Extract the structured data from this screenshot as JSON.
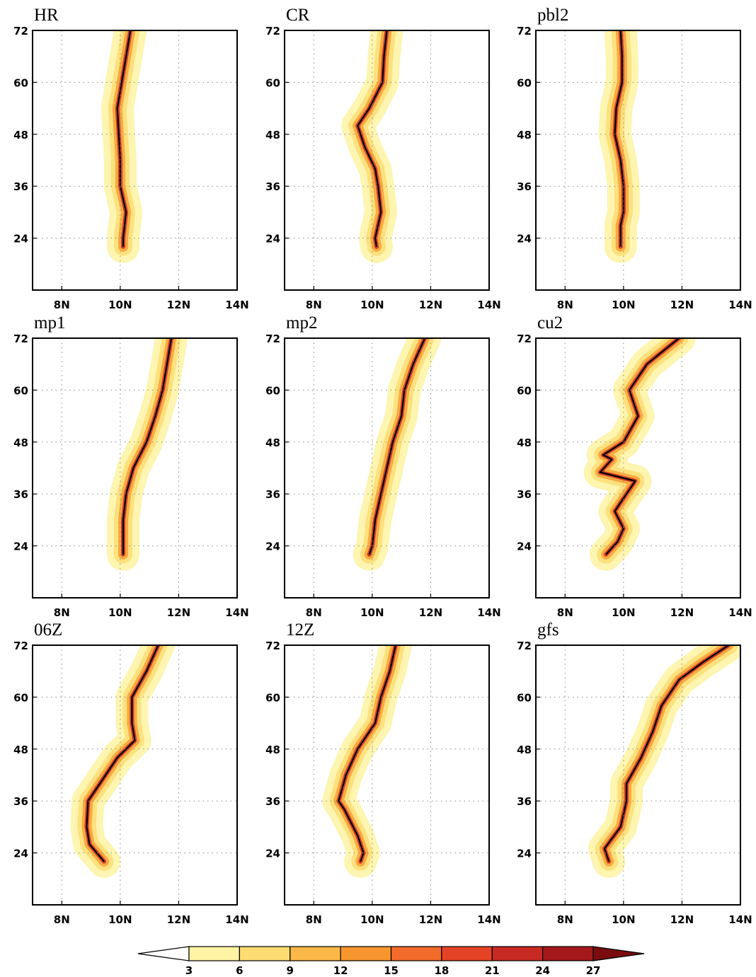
{
  "chart_data": [
    {
      "type": "line",
      "title": "HR",
      "x": [
        10.35,
        10.2,
        10.05,
        9.9,
        9.95,
        10.0,
        10.0,
        10.2,
        10.1,
        10.1
      ],
      "values": [
        72,
        66,
        60,
        54,
        48,
        42,
        36,
        30,
        24,
        22
      ],
      "color": "#000000",
      "xlim": [
        7,
        14
      ],
      "ylim": [
        12,
        72
      ],
      "xticks": [
        {
          "value": 8,
          "label": "8N"
        },
        {
          "value": 10,
          "label": "10N"
        },
        {
          "value": 12,
          "label": "12N"
        },
        {
          "value": 14,
          "label": "14N"
        }
      ],
      "yticks": [
        24,
        36,
        48,
        60,
        72
      ],
      "grid": true
    },
    {
      "type": "line",
      "title": "CR",
      "x": [
        10.5,
        10.4,
        10.35,
        9.9,
        9.5,
        9.75,
        10.1,
        10.2,
        10.3,
        10.1,
        10.15
      ],
      "values": [
        72,
        66,
        60,
        54,
        50,
        45,
        40,
        36,
        30,
        24,
        22
      ],
      "color": "#000000",
      "xlim": [
        7,
        14
      ],
      "ylim": [
        12,
        72
      ],
      "xticks": [
        {
          "value": 8,
          "label": "8N"
        },
        {
          "value": 10,
          "label": "10N"
        },
        {
          "value": 12,
          "label": "12N"
        },
        {
          "value": 14,
          "label": "14N"
        }
      ],
      "yticks": [
        24,
        36,
        48,
        60,
        72
      ],
      "grid": true
    },
    {
      "type": "line",
      "title": "pbl2",
      "x": [
        9.9,
        9.95,
        9.95,
        9.75,
        9.7,
        9.9,
        10.0,
        10.0,
        9.9,
        9.9
      ],
      "values": [
        72,
        66,
        60,
        54,
        48,
        42,
        36,
        30,
        27,
        22
      ],
      "color": "#000000",
      "xlim": [
        7,
        14
      ],
      "ylim": [
        12,
        72
      ],
      "xticks": [
        {
          "value": 8,
          "label": "8N"
        },
        {
          "value": 10,
          "label": "10N"
        },
        {
          "value": 12,
          "label": "12N"
        },
        {
          "value": 14,
          "label": "14N"
        }
      ],
      "yticks": [
        24,
        36,
        48,
        60,
        72
      ],
      "grid": true
    },
    {
      "type": "line",
      "title": "mp1",
      "x": [
        11.75,
        11.6,
        11.45,
        11.2,
        10.9,
        10.45,
        10.2,
        10.1,
        10.1
      ],
      "values": [
        72,
        66,
        60,
        54,
        48,
        42,
        36,
        30,
        22
      ],
      "color": "#000000",
      "xlim": [
        7,
        14
      ],
      "ylim": [
        12,
        72
      ],
      "xticks": [
        {
          "value": 8,
          "label": "8N"
        },
        {
          "value": 10,
          "label": "10N"
        },
        {
          "value": 12,
          "label": "12N"
        },
        {
          "value": 14,
          "label": "14N"
        }
      ],
      "yticks": [
        24,
        36,
        48,
        60,
        72
      ],
      "grid": true
    },
    {
      "type": "line",
      "title": "mp2",
      "x": [
        11.8,
        11.4,
        11.1,
        11.0,
        10.7,
        10.5,
        10.3,
        10.1,
        10.0,
        9.9
      ],
      "values": [
        72,
        66,
        60,
        54,
        48,
        42,
        36,
        30,
        24,
        22
      ],
      "color": "#000000",
      "xlim": [
        7,
        14
      ],
      "ylim": [
        12,
        72
      ],
      "xticks": [
        {
          "value": 8,
          "label": "8N"
        },
        {
          "value": 10,
          "label": "10N"
        },
        {
          "value": 12,
          "label": "12N"
        },
        {
          "value": 14,
          "label": "14N"
        }
      ],
      "yticks": [
        24,
        36,
        48,
        60,
        72
      ],
      "grid": true
    },
    {
      "type": "line",
      "title": "cu2",
      "x": [
        11.9,
        10.8,
        10.2,
        10.5,
        10.0,
        9.3,
        9.6,
        9.2,
        10.4,
        9.9,
        9.7,
        10.0,
        9.8,
        9.4
      ],
      "values": [
        72,
        66,
        60,
        54,
        48,
        45,
        44,
        41,
        39,
        34,
        32,
        28,
        25,
        22
      ],
      "color": "#000000",
      "xlim": [
        7,
        14
      ],
      "ylim": [
        12,
        72
      ],
      "xticks": [
        {
          "value": 8,
          "label": "8N"
        },
        {
          "value": 10,
          "label": "10N"
        },
        {
          "value": 12,
          "label": "12N"
        },
        {
          "value": 14,
          "label": "14N"
        }
      ],
      "yticks": [
        24,
        36,
        48,
        60,
        72
      ],
      "grid": true
    },
    {
      "type": "line",
      "title": "06Z",
      "x": [
        11.3,
        10.9,
        10.4,
        10.4,
        10.5,
        9.9,
        9.5,
        8.9,
        8.85,
        8.95,
        9.45
      ],
      "values": [
        72,
        66,
        60,
        54,
        50,
        46,
        42,
        36,
        30,
        26,
        22
      ],
      "color": "#000000",
      "xlim": [
        7,
        14
      ],
      "ylim": [
        12,
        72
      ],
      "xticks": [
        {
          "value": 8,
          "label": "8N"
        },
        {
          "value": 10,
          "label": "10N"
        },
        {
          "value": 12,
          "label": "12N"
        },
        {
          "value": 14,
          "label": "14N"
        }
      ],
      "yticks": [
        24,
        36,
        48,
        60,
        72
      ],
      "grid": true
    },
    {
      "type": "line",
      "title": "12Z",
      "x": [
        10.8,
        10.6,
        10.3,
        10.1,
        9.5,
        9.1,
        8.85,
        9.05,
        9.5,
        9.7,
        9.6
      ],
      "values": [
        72,
        66,
        60,
        54,
        48,
        42,
        36,
        34,
        28,
        24,
        22
      ],
      "color": "#000000",
      "xlim": [
        7,
        14
      ],
      "ylim": [
        12,
        72
      ],
      "xticks": [
        {
          "value": 8,
          "label": "8N"
        },
        {
          "value": 10,
          "label": "10N"
        },
        {
          "value": 12,
          "label": "12N"
        },
        {
          "value": 14,
          "label": "14N"
        }
      ],
      "yticks": [
        24,
        36,
        48,
        60,
        72
      ],
      "grid": true
    },
    {
      "type": "line",
      "title": "gfs",
      "x": [
        13.6,
        12.7,
        11.9,
        11.3,
        11.0,
        10.6,
        10.1,
        10.1,
        9.9,
        9.35,
        9.5
      ],
      "values": [
        72,
        68,
        64,
        58,
        52,
        46,
        40,
        36,
        30,
        25,
        22
      ],
      "color": "#000000",
      "xlim": [
        7,
        14
      ],
      "ylim": [
        12,
        72
      ],
      "xticks": [
        {
          "value": 8,
          "label": "8N"
        },
        {
          "value": 10,
          "label": "10N"
        },
        {
          "value": 12,
          "label": "12N"
        },
        {
          "value": 14,
          "label": "14N"
        }
      ],
      "yticks": [
        24,
        36,
        48,
        60,
        72
      ],
      "grid": true
    }
  ],
  "colorbar": {
    "levels": [
      3,
      6,
      9,
      12,
      15,
      18,
      21,
      24,
      27
    ],
    "colors": [
      "#ffffff",
      "#fdf3a2",
      "#fddc72",
      "#fbb846",
      "#f7962e",
      "#f26b2b",
      "#e54325",
      "#c72a22",
      "#a5181c",
      "#7a0c10"
    ]
  }
}
